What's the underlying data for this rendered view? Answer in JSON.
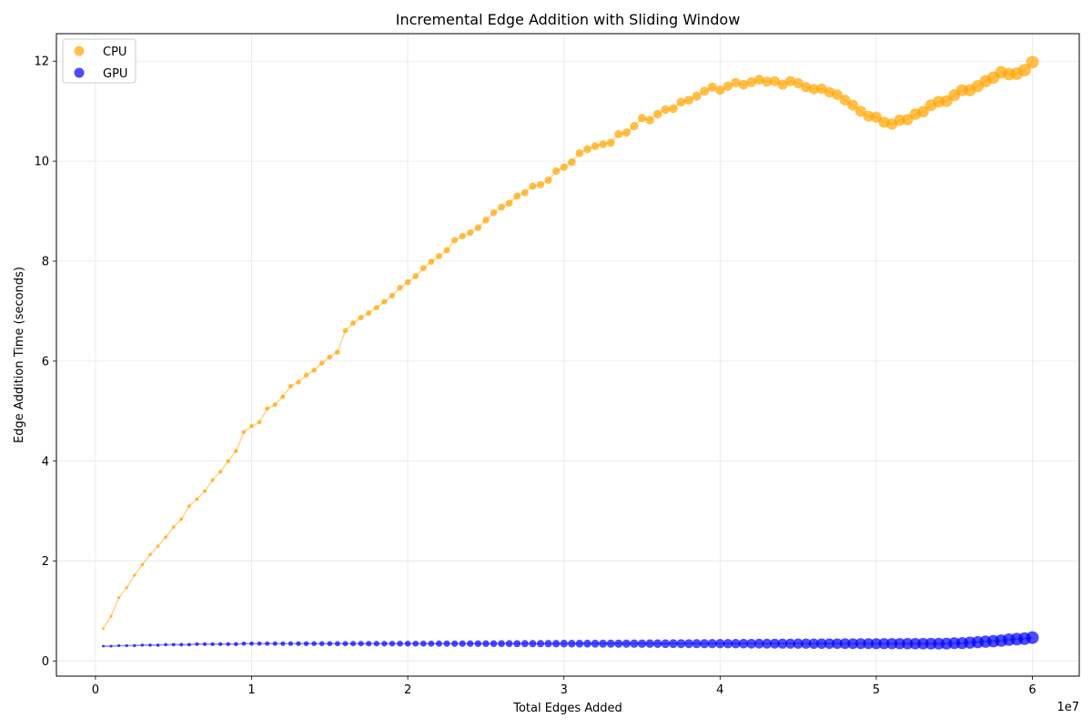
{
  "chart_data": {
    "type": "scatter",
    "title": "Incremental Edge Addition with Sliding Window",
    "xlabel": "Total Edges Added",
    "ylabel": "Edge Addition Time (seconds)",
    "x_offset_label": "1e7",
    "xlim": [
      -2500000,
      63000000
    ],
    "ylim": [
      -0.3,
      12.55
    ],
    "x_ticks": [
      0,
      10000000,
      20000000,
      30000000,
      40000000,
      50000000,
      60000000
    ],
    "x_tick_labels": [
      "0",
      "1",
      "2",
      "3",
      "4",
      "5",
      "6"
    ],
    "y_ticks": [
      0,
      2,
      4,
      6,
      8,
      10,
      12
    ],
    "y_tick_labels": [
      "0",
      "2",
      "4",
      "6",
      "8",
      "10",
      "12"
    ],
    "grid": true,
    "legend_position": "top-left",
    "marker_size_encodes": "x",
    "series": [
      {
        "name": "CPU",
        "color": "#FFA500",
        "x_start": 500000,
        "x_step": 500000,
        "values": [
          0.65,
          0.9,
          1.27,
          1.47,
          1.72,
          1.93,
          2.13,
          2.3,
          2.48,
          2.68,
          2.84,
          3.1,
          3.24,
          3.4,
          3.62,
          3.79,
          4.0,
          4.2,
          4.58,
          4.7,
          4.78,
          5.05,
          5.13,
          5.29,
          5.5,
          5.58,
          5.72,
          5.82,
          5.96,
          6.08,
          6.18,
          6.61,
          6.76,
          6.87,
          6.96,
          7.07,
          7.19,
          7.31,
          7.47,
          7.58,
          7.7,
          7.86,
          7.99,
          8.1,
          8.22,
          8.42,
          8.5,
          8.57,
          8.67,
          8.82,
          8.97,
          9.08,
          9.16,
          9.3,
          9.37,
          9.5,
          9.53,
          9.62,
          9.8,
          9.88,
          9.98,
          10.16,
          10.24,
          10.3,
          10.34,
          10.37,
          10.54,
          10.57,
          10.7,
          10.86,
          10.82,
          10.94,
          11.03,
          11.05,
          11.18,
          11.22,
          11.3,
          11.4,
          11.48,
          11.42,
          11.5,
          11.57,
          11.53,
          11.58,
          11.63,
          11.59,
          11.6,
          11.53,
          11.6,
          11.56,
          11.48,
          11.44,
          11.45,
          11.38,
          11.33,
          11.22,
          11.12,
          11.0,
          10.9,
          10.88,
          10.78,
          10.74,
          10.82,
          10.83,
          10.94,
          10.99,
          11.12,
          11.19,
          11.2,
          11.32,
          11.42,
          11.42,
          11.5,
          11.6,
          11.67,
          11.78,
          11.74,
          11.75,
          11.82,
          11.98
        ]
      },
      {
        "name": "GPU",
        "color": "#0000FF",
        "x_start": 500000,
        "x_step": 500000,
        "values": [
          0.3,
          0.3,
          0.31,
          0.31,
          0.31,
          0.32,
          0.32,
          0.32,
          0.33,
          0.33,
          0.33,
          0.33,
          0.34,
          0.34,
          0.34,
          0.34,
          0.34,
          0.34,
          0.35,
          0.35,
          0.35,
          0.35,
          0.35,
          0.35,
          0.35,
          0.35,
          0.35,
          0.35,
          0.35,
          0.35,
          0.35,
          0.35,
          0.35,
          0.35,
          0.35,
          0.35,
          0.35,
          0.35,
          0.35,
          0.35,
          0.35,
          0.35,
          0.35,
          0.35,
          0.35,
          0.35,
          0.35,
          0.35,
          0.35,
          0.35,
          0.35,
          0.35,
          0.35,
          0.35,
          0.35,
          0.35,
          0.35,
          0.35,
          0.35,
          0.35,
          0.35,
          0.35,
          0.35,
          0.35,
          0.35,
          0.35,
          0.35,
          0.35,
          0.35,
          0.35,
          0.35,
          0.35,
          0.35,
          0.35,
          0.35,
          0.35,
          0.35,
          0.35,
          0.35,
          0.35,
          0.35,
          0.35,
          0.35,
          0.35,
          0.35,
          0.35,
          0.35,
          0.35,
          0.35,
          0.35,
          0.35,
          0.35,
          0.35,
          0.35,
          0.35,
          0.35,
          0.35,
          0.35,
          0.35,
          0.35,
          0.35,
          0.35,
          0.35,
          0.35,
          0.35,
          0.35,
          0.35,
          0.35,
          0.35,
          0.36,
          0.36,
          0.37,
          0.38,
          0.39,
          0.4,
          0.41,
          0.43,
          0.44,
          0.45,
          0.47
        ]
      }
    ]
  }
}
